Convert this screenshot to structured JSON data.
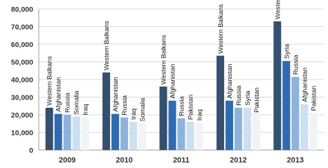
{
  "chart_data": {
    "type": "grouped-bar",
    "ylim": [
      0,
      80000
    ],
    "yticks": [
      0,
      {
        "value": 10000,
        "label": "10,000"
      },
      {
        "value": 20000,
        "label": "20,000"
      },
      {
        "value": 30000,
        "label": "30,000"
      },
      {
        "value": 40000,
        "label": "40,000"
      },
      {
        "value": 50000,
        "label": "50,000"
      },
      {
        "value": 60000,
        "label": "60,000"
      },
      {
        "value": 70000,
        "label": "70,000"
      },
      {
        "value": 80000,
        "label": "80,000"
      }
    ],
    "grid": true,
    "colors": [
      "#34506f",
      "#2f6bb0",
      "#8db3dd",
      "#cddff2",
      "#f1f3f6"
    ],
    "groups": [
      {
        "category": "2009",
        "bars": [
          {
            "label": "Western Balkans",
            "value": 24000
          },
          {
            "label": "Afghanistan",
            "value": 20500
          },
          {
            "label": "Russia",
            "value": 20000
          },
          {
            "label": "Somalia",
            "value": 19000
          },
          {
            "label": "Iraq",
            "value": 18500
          }
        ]
      },
      {
        "category": "2010",
        "bars": [
          {
            "label": "Western Balkans",
            "value": 44000
          },
          {
            "label": "Afghanistan",
            "value": 20500
          },
          {
            "label": "Russia",
            "value": 18500
          },
          {
            "label": "Iraq",
            "value": 16000
          },
          {
            "label": "Somalia",
            "value": 15000
          }
        ]
      },
      {
        "category": "2011",
        "bars": [
          {
            "label": "Western Balkans",
            "value": 36000
          },
          {
            "label": "Afghanistan",
            "value": 28000
          },
          {
            "label": "Russia",
            "value": 18000
          },
          {
            "label": "Pakistan",
            "value": 16000
          },
          {
            "label": "Iraq",
            "value": 15500
          }
        ]
      },
      {
        "category": "2012",
        "bars": [
          {
            "label": "Western Balkans",
            "value": 53500
          },
          {
            "label": "Afghanistan",
            "value": 28000
          },
          {
            "label": "Russia",
            "value": 24000
          },
          {
            "label": "Syria",
            "value": 24000
          },
          {
            "label": "Pakistan",
            "value": 20000
          }
        ]
      },
      {
        "category": "2013",
        "bars": [
          {
            "label": "Western Balkans",
            "value": 73000
          },
          {
            "label": "Syria",
            "value": 50500
          },
          {
            "label": "Russia",
            "value": 41500
          },
          {
            "label": "Afghanistan",
            "value": 26000
          },
          {
            "label": "Pakistan",
            "value": 21000
          }
        ]
      }
    ]
  }
}
